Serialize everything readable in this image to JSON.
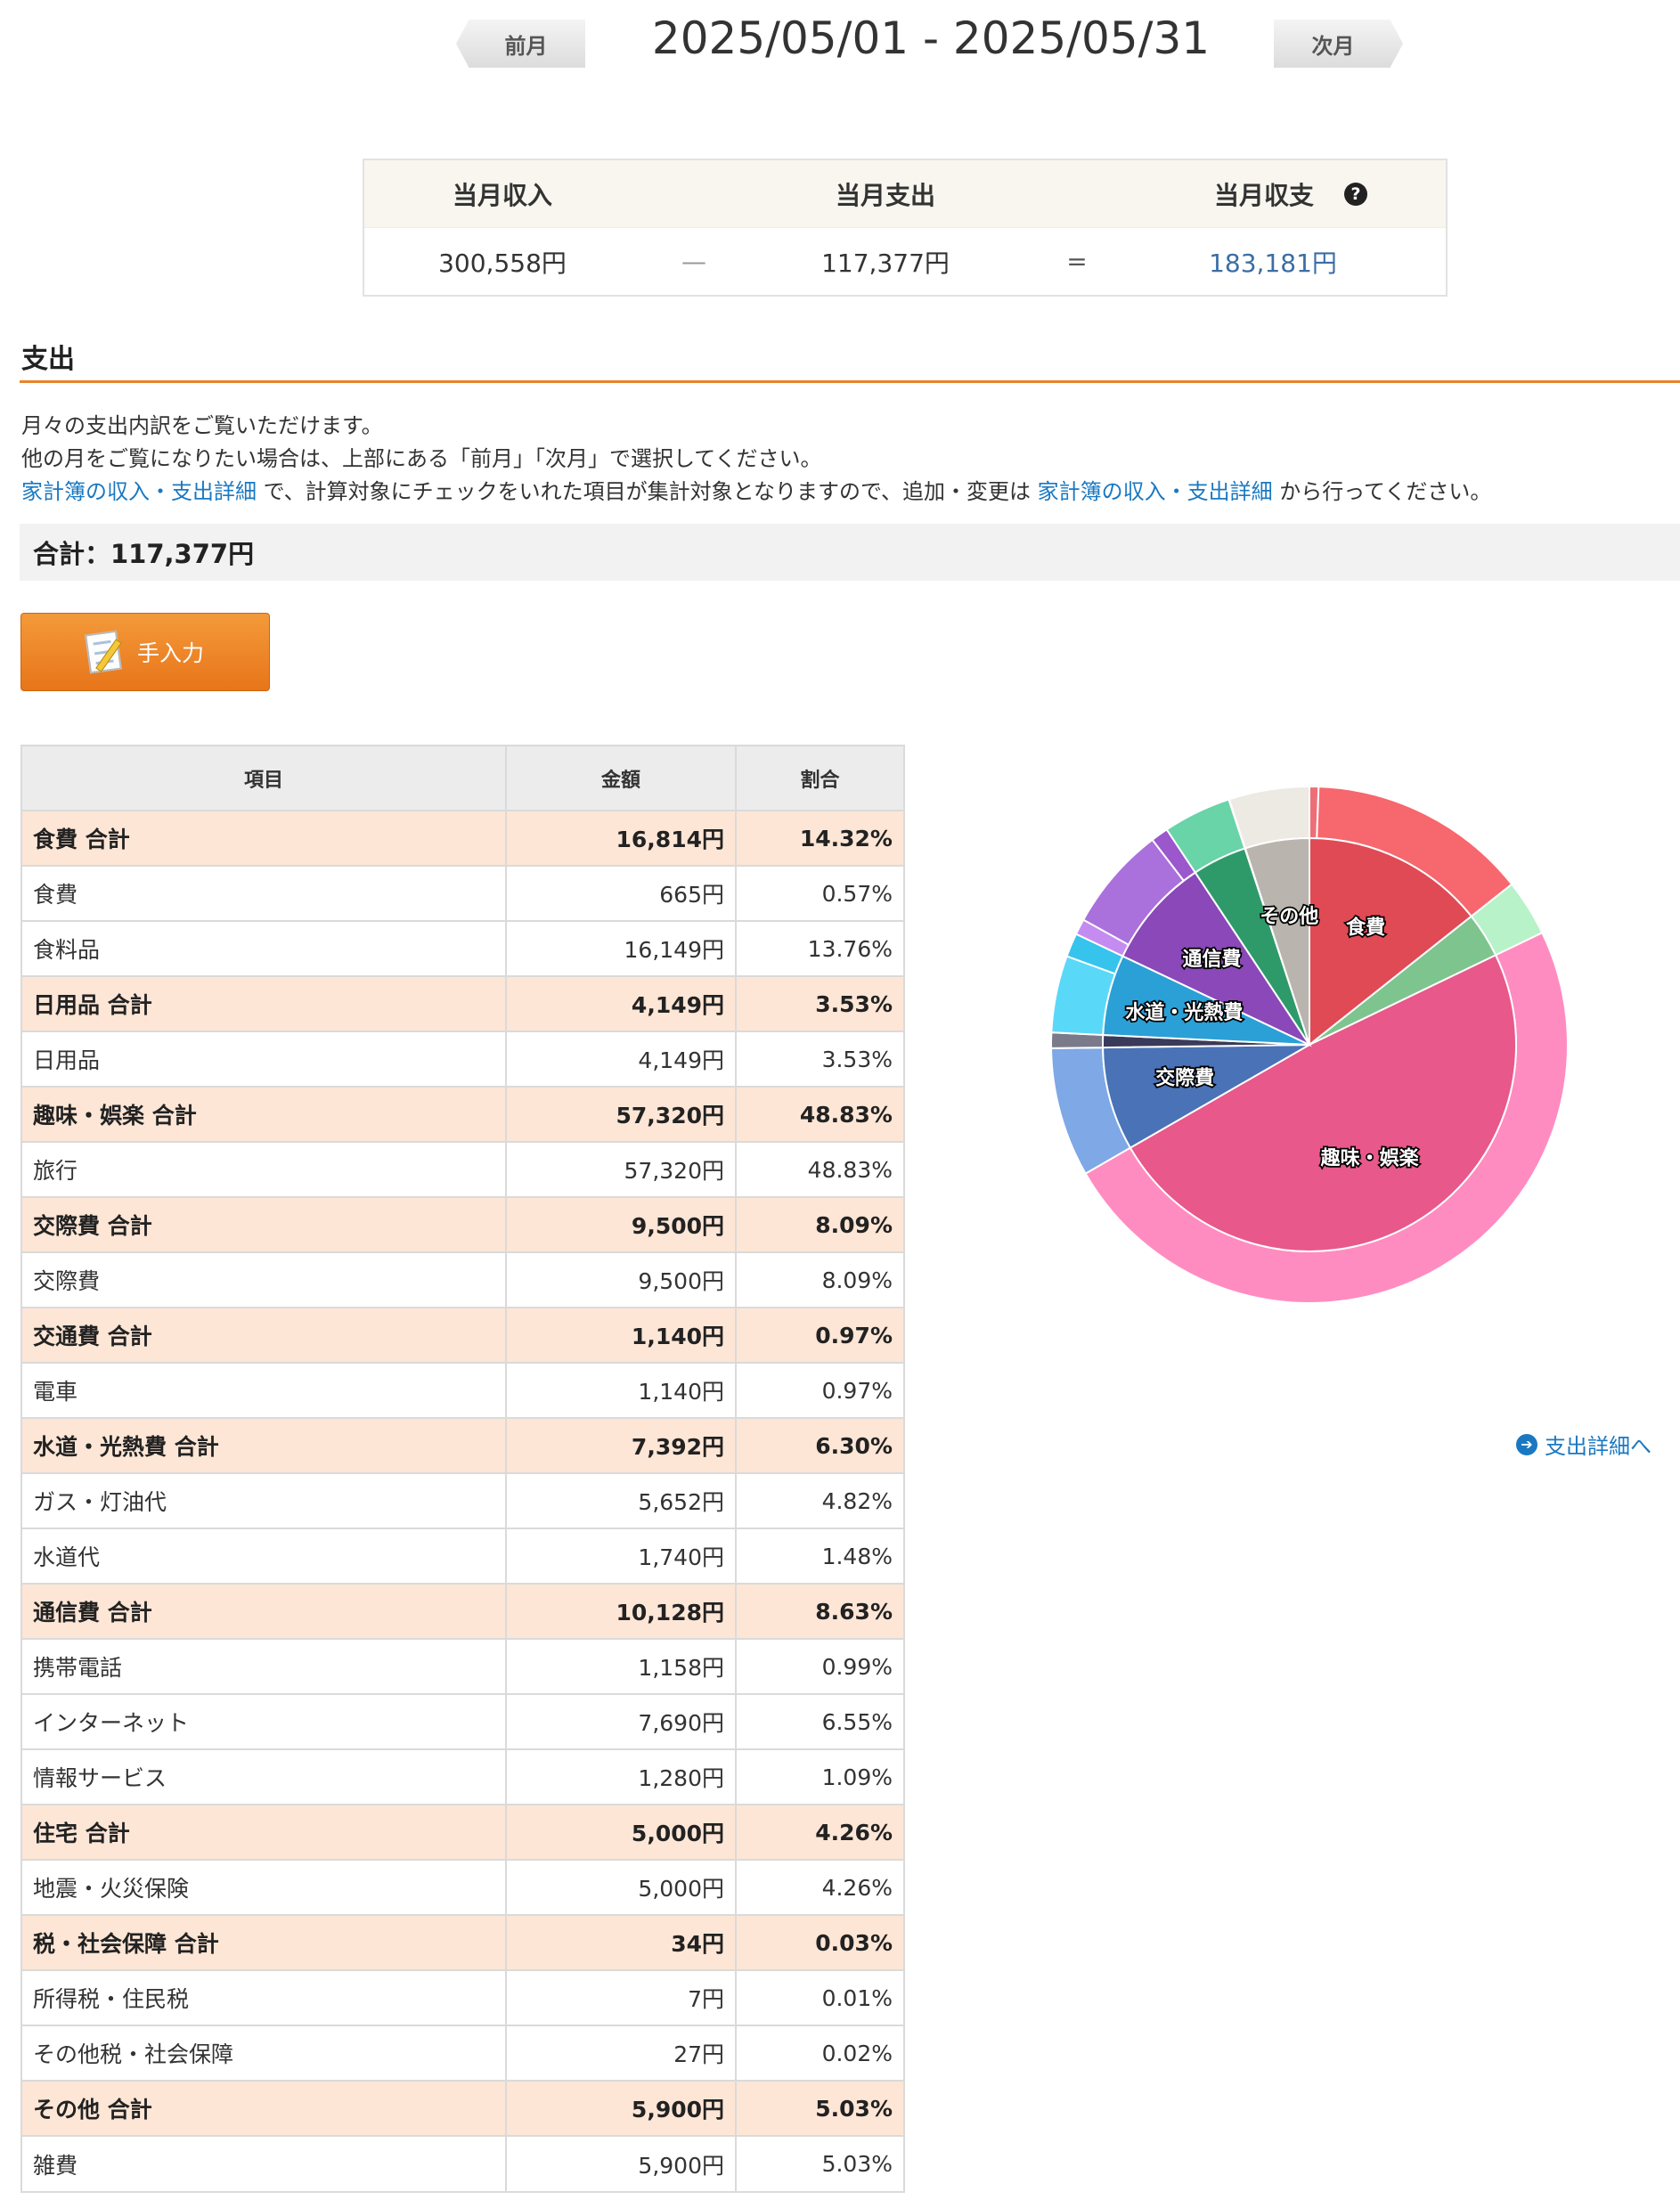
{
  "nav": {
    "prev_label": "前月",
    "next_label": "次月",
    "period": "2025/05/01 - 2025/05/31"
  },
  "summary": {
    "income_label": "当月収入",
    "expense_label": "当月支出",
    "balance_label": "当月収支",
    "help_icon": "?",
    "income_value": "300,558円",
    "minus_sign": "—",
    "expense_value": "117,377円",
    "equals_sign": "=",
    "balance_value": "183,181円"
  },
  "section": {
    "title": "支出",
    "desc_line1": "月々の支出内訳をご覧いただけます。",
    "desc_line2": "他の月をご覧になりたい場合は、上部にある「前月」「次月」で選択してください。",
    "desc_link1": "家計簿の収入・支出詳細",
    "desc_mid": " で、計算対象にチェックをいれた項目が集計対象となりますので、追加・変更は ",
    "desc_link2": "家計簿の収入・支出詳細",
    "desc_end": " から行ってください。",
    "total": "合計：117,377円",
    "input_button": "手入力",
    "detail_link": "支出詳細へ"
  },
  "table": {
    "headers": [
      "項目",
      "金額",
      "割合"
    ],
    "rows": [
      {
        "name": "食費 合計",
        "amount": "16,814円",
        "ratio": "14.32%",
        "group": true
      },
      {
        "name": "食費",
        "amount": "665円",
        "ratio": "0.57%",
        "group": false
      },
      {
        "name": "食料品",
        "amount": "16,149円",
        "ratio": "13.76%",
        "group": false
      },
      {
        "name": "日用品 合計",
        "amount": "4,149円",
        "ratio": "3.53%",
        "group": true
      },
      {
        "name": "日用品",
        "amount": "4,149円",
        "ratio": "3.53%",
        "group": false
      },
      {
        "name": "趣味・娯楽 合計",
        "amount": "57,320円",
        "ratio": "48.83%",
        "group": true
      },
      {
        "name": "旅行",
        "amount": "57,320円",
        "ratio": "48.83%",
        "group": false
      },
      {
        "name": "交際費 合計",
        "amount": "9,500円",
        "ratio": "8.09%",
        "group": true
      },
      {
        "name": "交際費",
        "amount": "9,500円",
        "ratio": "8.09%",
        "group": false
      },
      {
        "name": "交通費 合計",
        "amount": "1,140円",
        "ratio": "0.97%",
        "group": true
      },
      {
        "name": "電車",
        "amount": "1,140円",
        "ratio": "0.97%",
        "group": false
      },
      {
        "name": "水道・光熱費 合計",
        "amount": "7,392円",
        "ratio": "6.30%",
        "group": true
      },
      {
        "name": "ガス・灯油代",
        "amount": "5,652円",
        "ratio": "4.82%",
        "group": false
      },
      {
        "name": "水道代",
        "amount": "1,740円",
        "ratio": "1.48%",
        "group": false
      },
      {
        "name": "通信費 合計",
        "amount": "10,128円",
        "ratio": "8.63%",
        "group": true
      },
      {
        "name": "携帯電話",
        "amount": "1,158円",
        "ratio": "0.99%",
        "group": false
      },
      {
        "name": "インターネット",
        "amount": "7,690円",
        "ratio": "6.55%",
        "group": false
      },
      {
        "name": "情報サービス",
        "amount": "1,280円",
        "ratio": "1.09%",
        "group": false
      },
      {
        "name": "住宅 合計",
        "amount": "5,000円",
        "ratio": "4.26%",
        "group": true
      },
      {
        "name": "地震・火災保険",
        "amount": "5,000円",
        "ratio": "4.26%",
        "group": false
      },
      {
        "name": "税・社会保障 合計",
        "amount": "34円",
        "ratio": "0.03%",
        "group": true
      },
      {
        "name": "所得税・住民税",
        "amount": "7円",
        "ratio": "0.01%",
        "group": false
      },
      {
        "name": "その他税・社会保障",
        "amount": "27円",
        "ratio": "0.02%",
        "group": false
      },
      {
        "name": "その他 合計",
        "amount": "5,900円",
        "ratio": "5.03%",
        "group": true
      },
      {
        "name": "雑費",
        "amount": "5,900円",
        "ratio": "5.03%",
        "group": false
      }
    ]
  },
  "chart_data": {
    "type": "pie",
    "inner": [
      {
        "name": "食費",
        "value": 16814,
        "color": "#e04a55",
        "label": true
      },
      {
        "name": "日用品",
        "value": 4149,
        "color": "#7ec48e",
        "label": false
      },
      {
        "name": "趣味・娯楽",
        "value": 57320,
        "color": "#e8588a",
        "label": true
      },
      {
        "name": "交際費",
        "value": 9500,
        "color": "#4a72b6",
        "label": true
      },
      {
        "name": "交通費",
        "value": 1140,
        "color": "#3a3a5a",
        "label": false
      },
      {
        "name": "水道・光熱費",
        "value": 7392,
        "color": "#2aa0d6",
        "label": true
      },
      {
        "name": "通信費",
        "value": 10128,
        "color": "#8a48b8",
        "label": true
      },
      {
        "name": "住宅",
        "value": 5000,
        "color": "#2e9a6a",
        "label": false
      },
      {
        "name": "税・社会保障",
        "value": 34,
        "color": "#999999",
        "label": false
      },
      {
        "name": "その他",
        "value": 5900,
        "color": "#b9b4ad",
        "label": true
      }
    ],
    "outer": [
      {
        "name": "食費",
        "value": 665,
        "color": "#ee6e78"
      },
      {
        "name": "食料品",
        "value": 16149,
        "color": "#f7676e"
      },
      {
        "name": "日用品",
        "value": 4149,
        "color": "#b8f2c8"
      },
      {
        "name": "旅行",
        "value": 57320,
        "color": "#ff8cc0"
      },
      {
        "name": "交際費",
        "value": 9500,
        "color": "#7ea8e6"
      },
      {
        "name": "電車",
        "value": 1140,
        "color": "#7a7a8a"
      },
      {
        "name": "ガス・灯油代",
        "value": 5652,
        "color": "#5ad8f8"
      },
      {
        "name": "水道代",
        "value": 1740,
        "color": "#36c4ec"
      },
      {
        "name": "携帯電話",
        "value": 1158,
        "color": "#c48cf0"
      },
      {
        "name": "インターネット",
        "value": 7690,
        "color": "#aa70dc"
      },
      {
        "name": "情報サービス",
        "value": 1280,
        "color": "#9a58cc"
      },
      {
        "name": "地震・火災保険",
        "value": 5000,
        "color": "#68d4a8"
      },
      {
        "name": "所得税・住民税",
        "value": 7,
        "color": "#cccccc"
      },
      {
        "name": "その他税・社会保障",
        "value": 27,
        "color": "#d6d6d6"
      },
      {
        "name": "雑費",
        "value": 5900,
        "color": "#ede9e3"
      }
    ]
  }
}
